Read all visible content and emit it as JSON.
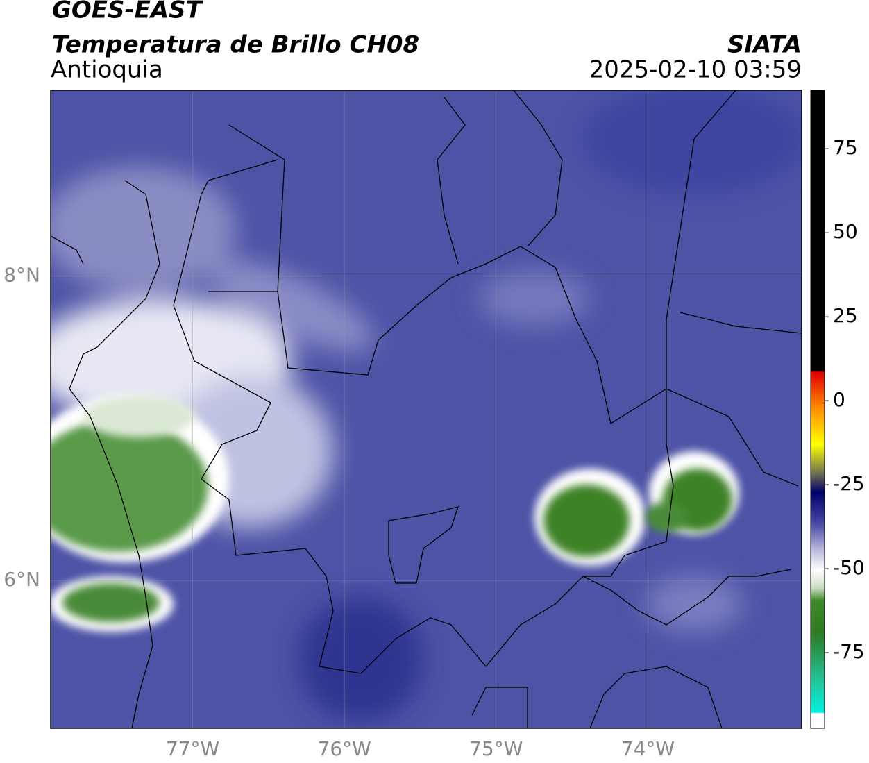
{
  "header": {
    "satellite": "GOES-EAST",
    "product": "Temperatura de Brillo CH08",
    "region": "Antioquia",
    "source": "SIATA",
    "timestamp": "2025-02-10 03:59"
  },
  "map": {
    "xlim": [
      -77.936,
      -72.986
    ],
    "ylim": [
      5.03,
      9.22
    ],
    "xticks": [
      {
        "value": -77,
        "label": "77°W"
      },
      {
        "value": -76,
        "label": "76°W"
      },
      {
        "value": -75,
        "label": "75°W"
      },
      {
        "value": -74,
        "label": "74°W"
      }
    ],
    "yticks": [
      {
        "value": 8,
        "label": "8°N"
      },
      {
        "value": 6,
        "label": "6°N"
      }
    ],
    "grid": true
  },
  "colorbar": {
    "lim": [
      -97.5,
      92.4
    ],
    "ticks": [
      75,
      50,
      25,
      0,
      -25,
      -50,
      -75
    ]
  }
}
